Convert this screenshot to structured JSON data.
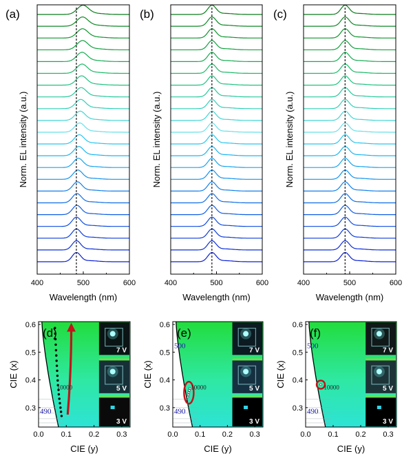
{
  "chart_data": [
    {
      "panel": "(a)",
      "type": "line",
      "xlabel": "Wavelength (nm)",
      "ylabel": "Norm. EL intensity (a.u.)",
      "xlim": [
        400,
        600
      ],
      "xticks": [
        "400",
        "500",
        "600"
      ],
      "reference_line_nm": 485,
      "series_count": 22,
      "peak_nm": [
        485,
        485,
        485,
        485,
        486,
        486,
        487,
        488,
        489,
        490,
        491,
        492,
        493,
        494,
        495,
        496,
        497,
        497,
        498,
        498,
        498,
        499
      ],
      "colors": [
        "#0a1fd6",
        "#0b2cda",
        "#0c3bdd",
        "#0d4be0",
        "#0e5ce3",
        "#0f6de6",
        "#117fe9",
        "#1391eb",
        "#16a3ee",
        "#1ab5f0",
        "#24c6f0",
        "#66e0ea",
        "#3fd6d4",
        "#2ed0b6",
        "#25c99a",
        "#1ec27f",
        "#19b866",
        "#15ac50",
        "#12a03e",
        "#0f942f",
        "#0c8824",
        "#0a7c1a"
      ]
    },
    {
      "panel": "(b)",
      "type": "line",
      "xlabel": "Wavelength (nm)",
      "ylabel": "Norm. EL intensity (a.u.)",
      "xlim": [
        400,
        600
      ],
      "xticks": [
        "400",
        "500",
        "600"
      ],
      "reference_line_nm": 490,
      "series_count": 22,
      "peak_nm": 490
    },
    {
      "panel": "(c)",
      "type": "line",
      "xlabel": "Wavelength (nm)",
      "ylabel": "Norm. EL intensity (a.u.)",
      "xlim": [
        400,
        600
      ],
      "xticks": [
        "400",
        "500",
        "600"
      ],
      "reference_line_nm": 490,
      "series_count": 22,
      "peak_nm": 490
    },
    {
      "panel": "(d)",
      "type": "scatter",
      "xlabel": "CIE (y)",
      "ylabel": "CIE (x)",
      "xlim": [
        0.0,
        0.33
      ],
      "ylim": [
        0.23,
        0.61
      ],
      "xticks": [
        "0.0",
        "0.1",
        "0.2",
        "0.3"
      ],
      "yticks": [
        "0.3",
        "0.4",
        "0.5",
        "0.6"
      ],
      "wavelength_labels": [
        "490"
      ],
      "cct_label": "10000",
      "photo_labels": [
        "7 V",
        "5 V",
        "3 V"
      ],
      "points": [
        [
          0.083,
          0.27
        ],
        [
          0.081,
          0.285
        ],
        [
          0.079,
          0.3
        ],
        [
          0.077,
          0.316
        ],
        [
          0.075,
          0.332
        ],
        [
          0.073,
          0.348
        ],
        [
          0.072,
          0.364
        ],
        [
          0.07,
          0.381
        ],
        [
          0.069,
          0.398
        ],
        [
          0.068,
          0.415
        ],
        [
          0.067,
          0.433
        ],
        [
          0.066,
          0.451
        ],
        [
          0.065,
          0.469
        ],
        [
          0.064,
          0.488
        ],
        [
          0.063,
          0.507
        ],
        [
          0.062,
          0.527
        ],
        [
          0.061,
          0.547
        ],
        [
          0.06,
          0.567
        ],
        [
          0.059,
          0.587
        ]
      ]
    },
    {
      "panel": "(e)",
      "type": "scatter",
      "xlabel": "CIE (y)",
      "ylabel": "CIE (x)",
      "xlim": [
        0.0,
        0.33
      ],
      "ylim": [
        0.23,
        0.61
      ],
      "xticks": [
        "0.0",
        "0.1",
        "0.2",
        "0.3"
      ],
      "yticks": [
        "0.3",
        "0.4",
        "0.5",
        "0.6"
      ],
      "wavelength_labels": [
        "500",
        "490"
      ],
      "cct_label": "10000",
      "photo_labels": [
        "7 V",
        "5 V",
        "3 V"
      ],
      "points": [
        [
          0.055,
          0.338
        ],
        [
          0.057,
          0.346
        ],
        [
          0.059,
          0.354
        ],
        [
          0.061,
          0.362
        ],
        [
          0.063,
          0.37
        ]
      ]
    },
    {
      "panel": "(f)",
      "type": "scatter",
      "xlabel": "CIE (y)",
      "ylabel": "CIE (x)",
      "xlim": [
        0.0,
        0.33
      ],
      "ylim": [
        0.23,
        0.61
      ],
      "xticks": [
        "0.0",
        "0.1",
        "0.2",
        "0.3"
      ],
      "yticks": [
        "0.3",
        "0.4",
        "0.5",
        "0.6"
      ],
      "wavelength_labels": [
        "500",
        "490"
      ],
      "cct_label": "10000",
      "photo_labels": [
        "7 V",
        "5 V",
        "3 V"
      ],
      "points": [
        [
          0.055,
          0.383
        ]
      ]
    }
  ]
}
